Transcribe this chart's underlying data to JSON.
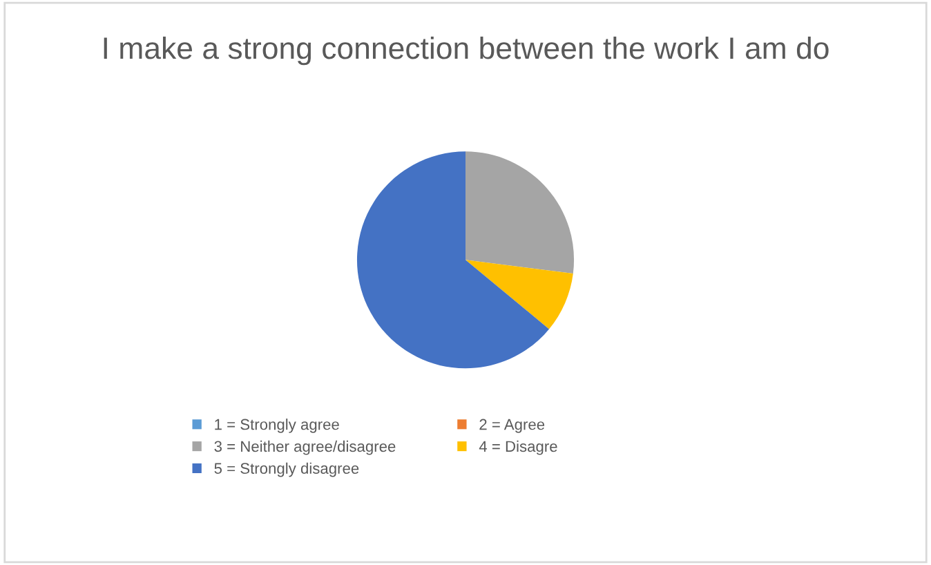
{
  "chart_data": {
    "type": "pie",
    "title": "I make a strong connection between the work I am do",
    "categories": [
      "1 = Strongly agree",
      "2 = Agree",
      "3 = Neither agree/disagree",
      "4 = Disagre",
      "5 = Strongly disagree"
    ],
    "values": [
      0,
      0,
      27,
      9,
      64
    ],
    "colors": [
      "#5b9bd5",
      "#ed7d31",
      "#a5a5a5",
      "#ffc000",
      "#4472c4"
    ],
    "legend": "bottom"
  }
}
